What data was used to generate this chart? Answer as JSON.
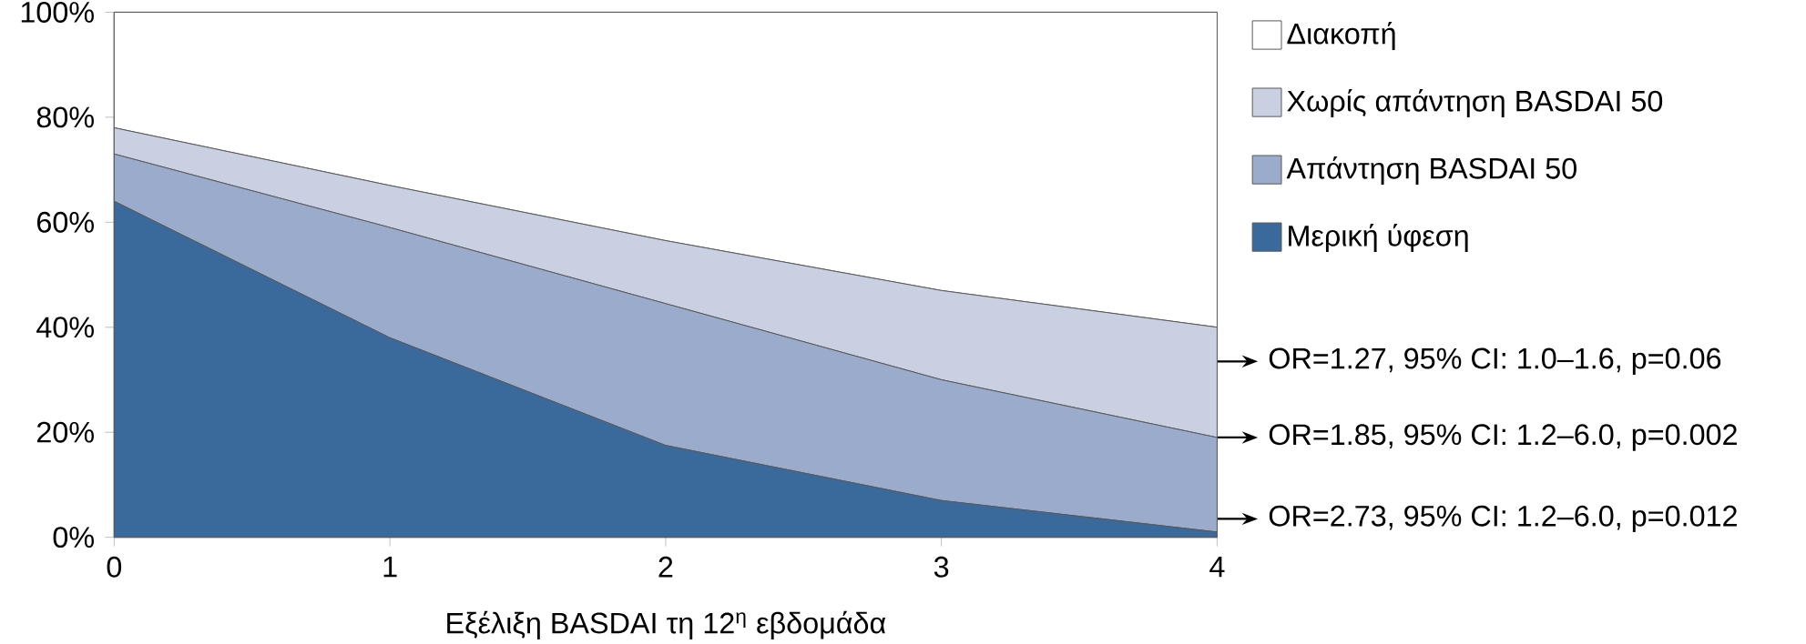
{
  "chart_data": {
    "type": "area",
    "stacked": true,
    "xlabel": "Εξέλιξη BASDAI τη 12$^{η}$ εβδομάδα",
    "x": [
      0,
      1,
      2,
      3,
      4
    ],
    "xlim": [
      0,
      4
    ],
    "xticks": [
      0,
      1,
      2,
      3,
      4
    ],
    "ylim": [
      0,
      100
    ],
    "yticks": [
      {
        "value": 0,
        "label": "0%"
      },
      {
        "value": 20,
        "label": "20%"
      },
      {
        "value": 40,
        "label": "40%"
      },
      {
        "value": 60,
        "label": "60%"
      },
      {
        "value": 80,
        "label": "80%"
      },
      {
        "value": 100,
        "label": "100%"
      }
    ],
    "series": [
      {
        "name": "Μερική ύφεση",
        "color": "#3a6a9c",
        "values": [
          64,
          38,
          17.5,
          7,
          1
        ]
      },
      {
        "name": "Απάντηση BASDAI 50",
        "color": "#9aabcb",
        "values": [
          9,
          21,
          27,
          23,
          18
        ]
      },
      {
        "name": "Χωρίς απάντηση BASDAI 50",
        "color": "#c8d0e2",
        "values": [
          5,
          8,
          12,
          17,
          21
        ]
      },
      {
        "name": "Διακοπή",
        "color": "#ffffff",
        "values": [
          22,
          33,
          43.5,
          53,
          60
        ]
      }
    ],
    "legend": "right",
    "grid": false,
    "annotations": [
      "OR=1.27, 95% CI: 1.0–1.6, p=0.06",
      "OR=1.85, 95% CI: 1.2–6.0, p=0.002",
      "OR=2.73, 95% CI: 1.2–6.0, p=0.012"
    ]
  }
}
